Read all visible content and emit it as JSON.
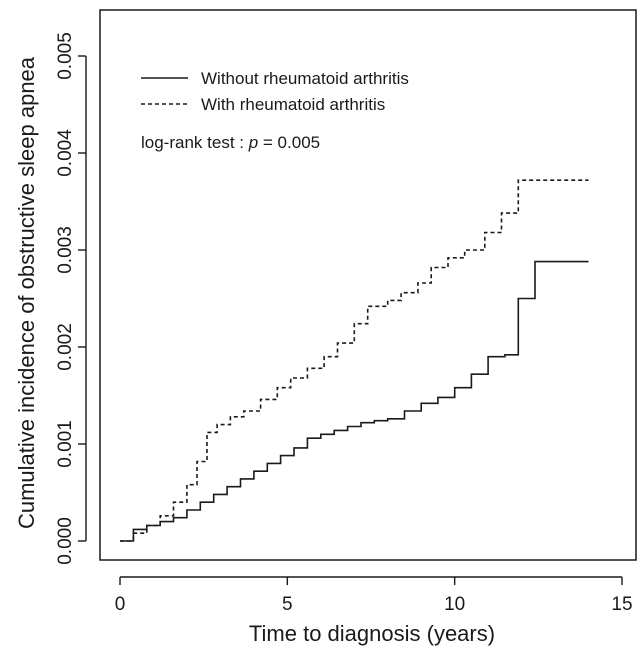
{
  "chart_data": {
    "type": "line",
    "title": "",
    "xlabel": "Time to diagnosis (years)",
    "ylabel": "Cumulative incidence of obstructive sleep apnea",
    "xlim": [
      0,
      15
    ],
    "ylim": [
      0,
      0.005
    ],
    "x_ticks": [
      0,
      5,
      10,
      15
    ],
    "y_ticks": [
      0.0,
      0.001,
      0.002,
      0.003,
      0.004,
      0.005
    ],
    "y_tick_labels": [
      "0.000",
      "0.001",
      "0.002",
      "0.003",
      "0.004",
      "0.005"
    ],
    "grid": false,
    "legend_position": "top-left",
    "annotation": {
      "prefix": "log-rank test : ",
      "p": "p",
      "suffix": " = 0.005"
    },
    "series": [
      {
        "name": "Without rheumatoid arthritis",
        "line_style": "solid",
        "color": "#1a1a1a",
        "x": [
          0,
          0.4,
          0.8,
          1.2,
          1.6,
          2.0,
          2.4,
          2.8,
          3.2,
          3.6,
          4.0,
          4.4,
          4.8,
          5.2,
          5.6,
          6.0,
          6.4,
          6.8,
          7.2,
          7.6,
          8.0,
          8.5,
          9.0,
          9.5,
          10.0,
          10.5,
          11.0,
          11.5,
          11.9,
          12.0,
          12.4,
          14.0
        ],
        "y": [
          0,
          0.00012,
          0.00016,
          0.0002,
          0.00024,
          0.00032,
          0.0004,
          0.00048,
          0.00056,
          0.00064,
          0.00072,
          0.0008,
          0.00088,
          0.00096,
          0.00106,
          0.0011,
          0.00114,
          0.00118,
          0.00122,
          0.00124,
          0.00126,
          0.00134,
          0.00142,
          0.00148,
          0.00158,
          0.00172,
          0.0019,
          0.00192,
          0.0025,
          0.0025,
          0.00288,
          0.00288
        ]
      },
      {
        "name": "With rheumatoid arthritis",
        "line_style": "dashed",
        "color": "#1a1a1a",
        "x": [
          0,
          0.4,
          0.8,
          1.2,
          1.6,
          2.0,
          2.3,
          2.6,
          2.9,
          3.3,
          3.7,
          4.2,
          4.7,
          5.1,
          5.6,
          6.1,
          6.5,
          7.0,
          7.4,
          8.0,
          8.4,
          8.9,
          9.3,
          9.8,
          10.3,
          10.9,
          11.4,
          11.9,
          14.0
        ],
        "y": [
          0,
          8e-05,
          0.00016,
          0.00026,
          0.0004,
          0.00058,
          0.00082,
          0.00112,
          0.0012,
          0.00128,
          0.00134,
          0.00146,
          0.00158,
          0.00168,
          0.00178,
          0.0019,
          0.00204,
          0.00224,
          0.00242,
          0.00248,
          0.00256,
          0.00266,
          0.00282,
          0.00292,
          0.003,
          0.00318,
          0.00338,
          0.00372,
          0.00372
        ]
      }
    ]
  }
}
